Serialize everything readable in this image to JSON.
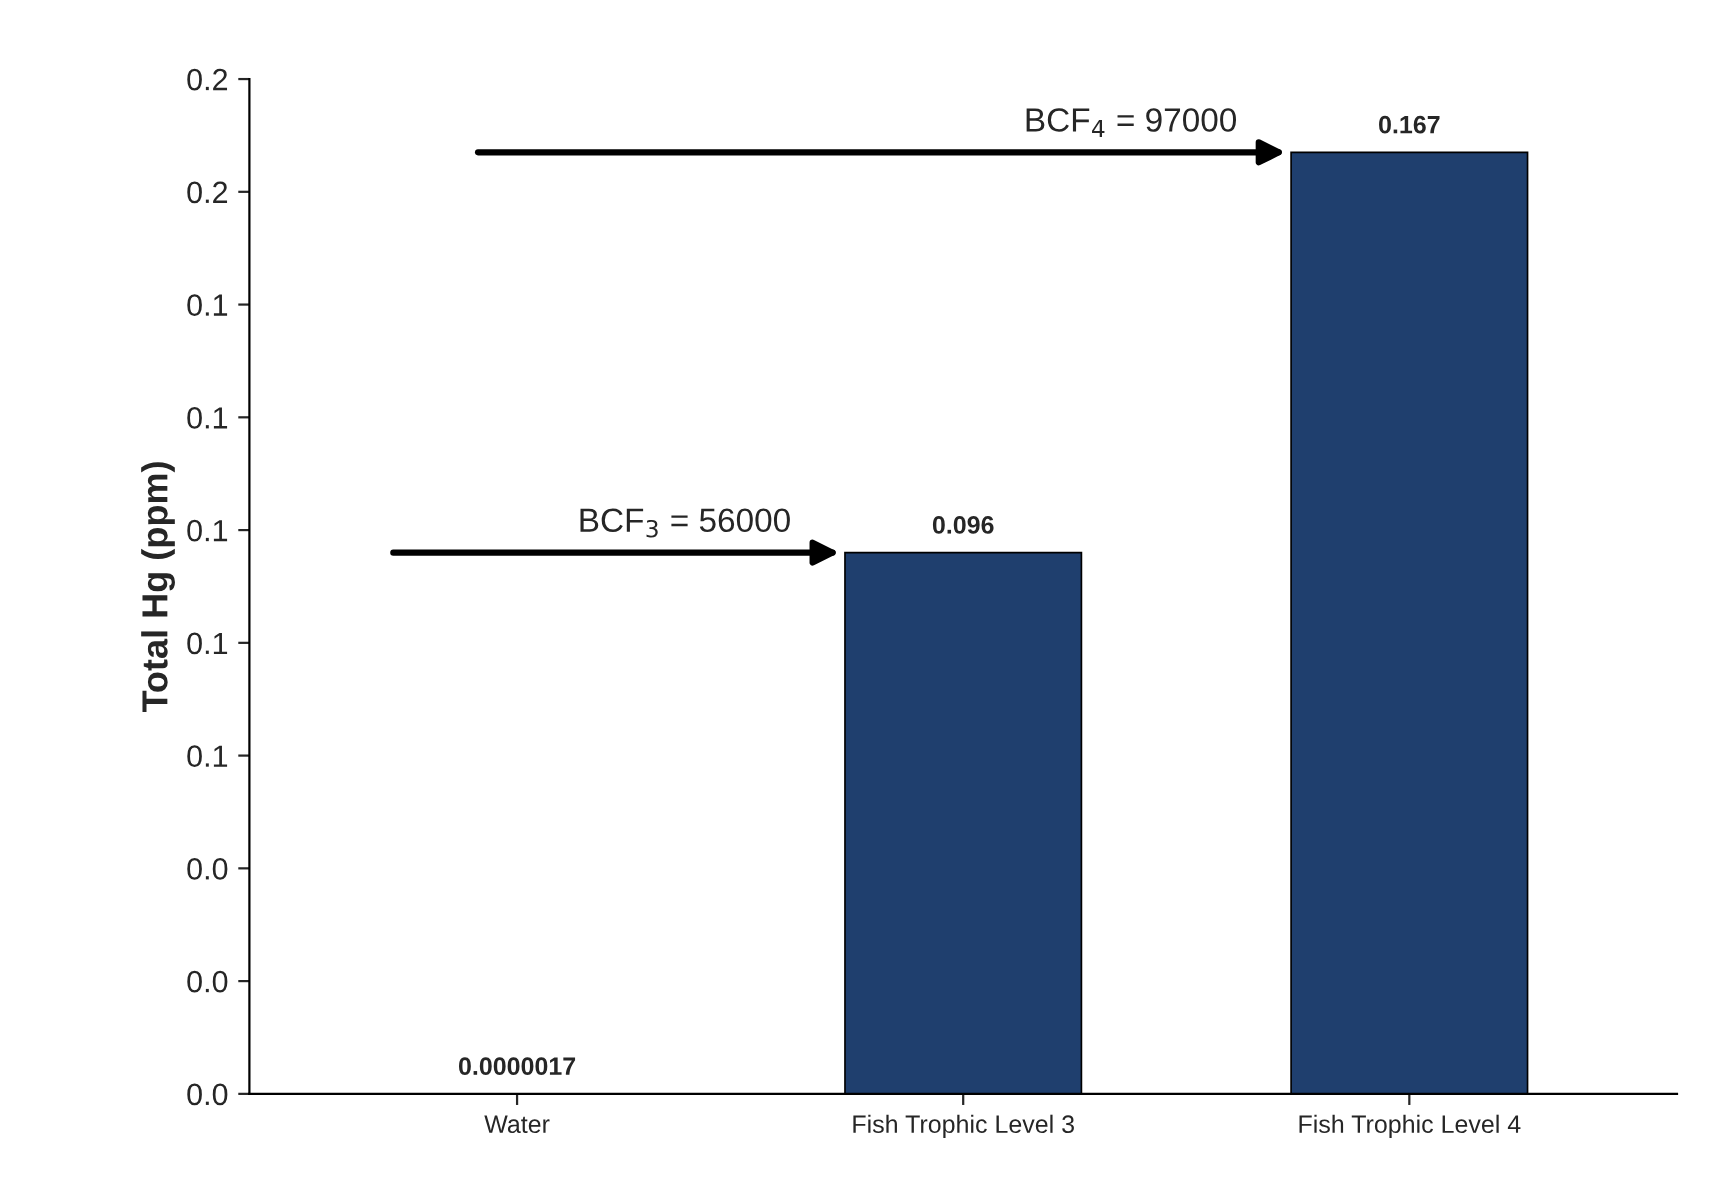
{
  "chart_data": {
    "type": "bar",
    "categories": [
      "Water",
      "Fish Trophic Level 3",
      "Fish Trophic Level 4"
    ],
    "values": [
      1.7e-06,
      0.096,
      0.167
    ],
    "color": "#1f3f6e",
    "ylabel": "Total Hg (ppm)",
    "ylim": [
      0,
      0.18
    ],
    "yticks": [
      {
        "value": 0,
        "label": "0.0"
      },
      {
        "value": 0.02,
        "label": "0.0"
      },
      {
        "value": 0.04,
        "label": "0.0"
      },
      {
        "value": 0.06,
        "label": "0.1"
      },
      {
        "value": 0.08,
        "label": "0.1"
      },
      {
        "value": 0.1,
        "label": "0.1"
      },
      {
        "value": 0.12,
        "label": "0.1"
      },
      {
        "value": 0.14,
        "label": "0.1"
      },
      {
        "value": 0.16,
        "label": "0.2"
      },
      {
        "value": 0.18,
        "label": "0.2"
      }
    ],
    "value_labels": [
      "0.0000017",
      "0.096",
      "0.167"
    ],
    "grid": false,
    "legend": false,
    "annotations": [
      "BCF$_{3}$ = 56000",
      "BCF$_{4}$ = 97000"
    ]
  }
}
